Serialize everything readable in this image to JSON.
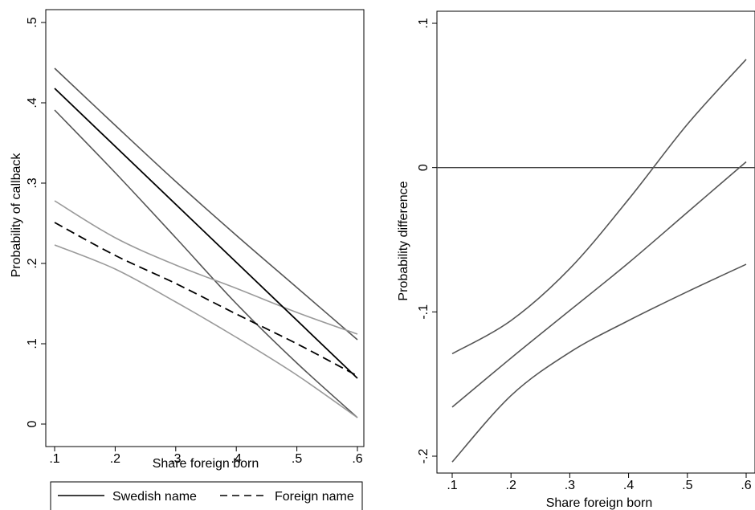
{
  "chart_data": [
    {
      "type": "line",
      "xlabel": "Share foreign born",
      "ylabel": "Probability of callback",
      "xlim": [
        0.1,
        0.6
      ],
      "ylim": [
        0,
        0.5
      ],
      "xticks": [
        {
          "value": 0.1,
          "label": ".1"
        },
        {
          "value": 0.2,
          "label": ".2"
        },
        {
          "value": 0.3,
          "label": ".3"
        },
        {
          "value": 0.4,
          "label": ".4"
        },
        {
          "value": 0.5,
          "label": ".5"
        },
        {
          "value": 0.6,
          "label": ".6"
        }
      ],
      "yticks": [
        {
          "value": 0,
          "label": "0"
        },
        {
          "value": 0.1,
          "label": ".1"
        },
        {
          "value": 0.2,
          "label": ".2"
        },
        {
          "value": 0.3,
          "label": ".3"
        },
        {
          "value": 0.4,
          "label": ".4"
        },
        {
          "value": 0.5,
          "label": ".5"
        }
      ],
      "grid": false,
      "legend_position": "bottom",
      "series": [
        {
          "name": "",
          "role": "swedish-upper-ci",
          "color": "#555555",
          "dash": "solid",
          "points": [
            [
              0.1,
              0.443
            ],
            [
              0.2,
              0.372
            ],
            [
              0.3,
              0.302
            ],
            [
              0.4,
              0.235
            ],
            [
              0.5,
              0.17
            ],
            [
              0.6,
              0.105
            ]
          ]
        },
        {
          "name": "",
          "role": "swedish-lower-ci",
          "color": "#555555",
          "dash": "solid",
          "points": [
            [
              0.1,
              0.391
            ],
            [
              0.2,
              0.313
            ],
            [
              0.3,
              0.232
            ],
            [
              0.4,
              0.15
            ],
            [
              0.5,
              0.076
            ],
            [
              0.6,
              0.008
            ]
          ]
        },
        {
          "name": "",
          "role": "foreign-upper-ci",
          "color": "#9a9a9a",
          "dash": "solid",
          "points": [
            [
              0.1,
              0.278
            ],
            [
              0.2,
              0.232
            ],
            [
              0.3,
              0.198
            ],
            [
              0.4,
              0.169
            ],
            [
              0.5,
              0.139
            ],
            [
              0.6,
              0.112
            ]
          ]
        },
        {
          "name": "",
          "role": "foreign-lower-ci",
          "color": "#9a9a9a",
          "dash": "solid",
          "points": [
            [
              0.1,
              0.223
            ],
            [
              0.2,
              0.193
            ],
            [
              0.3,
              0.152
            ],
            [
              0.4,
              0.108
            ],
            [
              0.5,
              0.061
            ],
            [
              0.6,
              0.008
            ]
          ]
        },
        {
          "name": "Swedish name",
          "role": "swedish-estimate",
          "color": "#000000",
          "dash": "solid",
          "points": [
            [
              0.1,
              0.418
            ],
            [
              0.6,
              0.057
            ]
          ]
        },
        {
          "name": "Foreign name",
          "role": "foreign-estimate",
          "color": "#000000",
          "dash": "dashed",
          "points": [
            [
              0.1,
              0.251
            ],
            [
              0.2,
              0.21
            ],
            [
              0.3,
              0.175
            ],
            [
              0.4,
              0.137
            ],
            [
              0.5,
              0.1
            ],
            [
              0.6,
              0.06
            ]
          ]
        }
      ],
      "legend": [
        "Swedish name",
        "Foreign name"
      ]
    },
    {
      "type": "line",
      "xlabel": "Share foreign born",
      "ylabel": "Probability difference",
      "xlim": [
        0.1,
        0.6
      ],
      "ylim": [
        -0.2,
        0.1
      ],
      "xticks": [
        {
          "value": 0.1,
          "label": ".1"
        },
        {
          "value": 0.2,
          "label": ".2"
        },
        {
          "value": 0.3,
          "label": ".3"
        },
        {
          "value": 0.4,
          "label": ".4"
        },
        {
          "value": 0.5,
          "label": ".5"
        },
        {
          "value": 0.6,
          "label": ".6"
        }
      ],
      "yticks": [
        {
          "value": -0.2,
          "label": "-.2"
        },
        {
          "value": -0.1,
          "label": "-.1"
        },
        {
          "value": 0,
          "label": "0"
        },
        {
          "value": 0.1,
          "label": ".1"
        }
      ],
      "grid": false,
      "reference_line_y": 0,
      "series": [
        {
          "name": "",
          "role": "upper-ci",
          "color": "#555555",
          "dash": "solid",
          "points": [
            [
              0.1,
              -0.129
            ],
            [
              0.2,
              -0.106
            ],
            [
              0.3,
              -0.07
            ],
            [
              0.4,
              -0.022
            ],
            [
              0.5,
              0.03
            ],
            [
              0.6,
              0.075
            ]
          ]
        },
        {
          "name": "",
          "role": "estimate",
          "color": "#555555",
          "dash": "solid",
          "points": [
            [
              0.1,
              -0.166
            ],
            [
              0.2,
              -0.132
            ],
            [
              0.3,
              -0.099
            ],
            [
              0.4,
              -0.066
            ],
            [
              0.5,
              -0.031
            ],
            [
              0.6,
              0.004
            ]
          ]
        },
        {
          "name": "",
          "role": "lower-ci",
          "color": "#555555",
          "dash": "solid",
          "points": [
            [
              0.1,
              -0.204
            ],
            [
              0.2,
              -0.158
            ],
            [
              0.3,
              -0.128
            ],
            [
              0.4,
              -0.106
            ],
            [
              0.5,
              -0.086
            ],
            [
              0.6,
              -0.067
            ]
          ]
        }
      ]
    }
  ]
}
